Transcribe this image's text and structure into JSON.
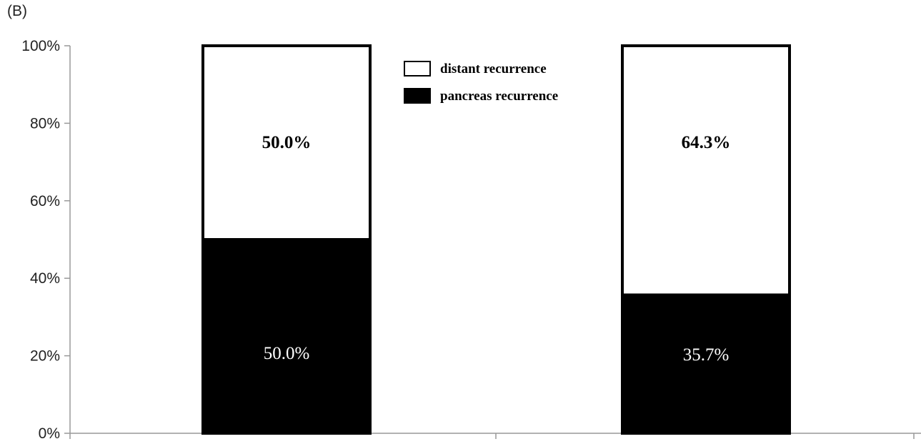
{
  "panel_label": "(B)",
  "chart_data": {
    "type": "bar",
    "stacked": true,
    "categories": [
      "",
      ""
    ],
    "series": [
      {
        "name": "pancreas recurrence",
        "values": [
          50.0,
          35.7
        ],
        "labels": [
          "50.0%",
          "35.7%"
        ],
        "color": "#000000",
        "label_color": "#ffffff"
      },
      {
        "name": "distant recurrence",
        "values": [
          50.0,
          64.3
        ],
        "labels": [
          "50.0%",
          "64.3%"
        ],
        "color": "#ffffff",
        "label_color": "#000000"
      }
    ],
    "ylim": [
      0,
      100
    ],
    "yticks": [
      "0%",
      "20%",
      "40%",
      "60%",
      "80%",
      "100%"
    ],
    "legend_position": "top-center",
    "legend_order": [
      "distant recurrence",
      "pancreas recurrence"
    ],
    "grid": false
  }
}
